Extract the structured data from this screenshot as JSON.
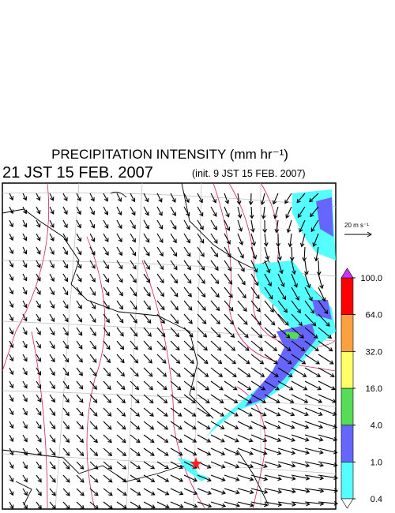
{
  "header": {
    "title": "PRECIPITATION INTENSITY (mm hr⁻¹)",
    "time": "21 JST 15 FEB. 2007",
    "init": "(init. 9 JST 15 FEB. 2007)"
  },
  "vector_legend": {
    "label": "20 m s⁻¹"
  },
  "colorbar": {
    "levels": [
      0.4,
      {
        "value": 1,
        "label": "1.0"
      },
      {
        "value": 4,
        "label": "4.0"
      },
      {
        "value": 16,
        "label": "16.0"
      },
      {
        "value": 32,
        "label": "32.0"
      },
      {
        "value": 64,
        "label": "64.0"
      },
      {
        "value": 100,
        "label": "100.0"
      }
    ],
    "colors": [
      "#55ffff",
      "#6666ff",
      "#55dd55",
      "#ffff66",
      "#ffa040",
      "#ff0000"
    ],
    "under_color": "#ffffff",
    "over_color": "#cc33ff"
  }
}
